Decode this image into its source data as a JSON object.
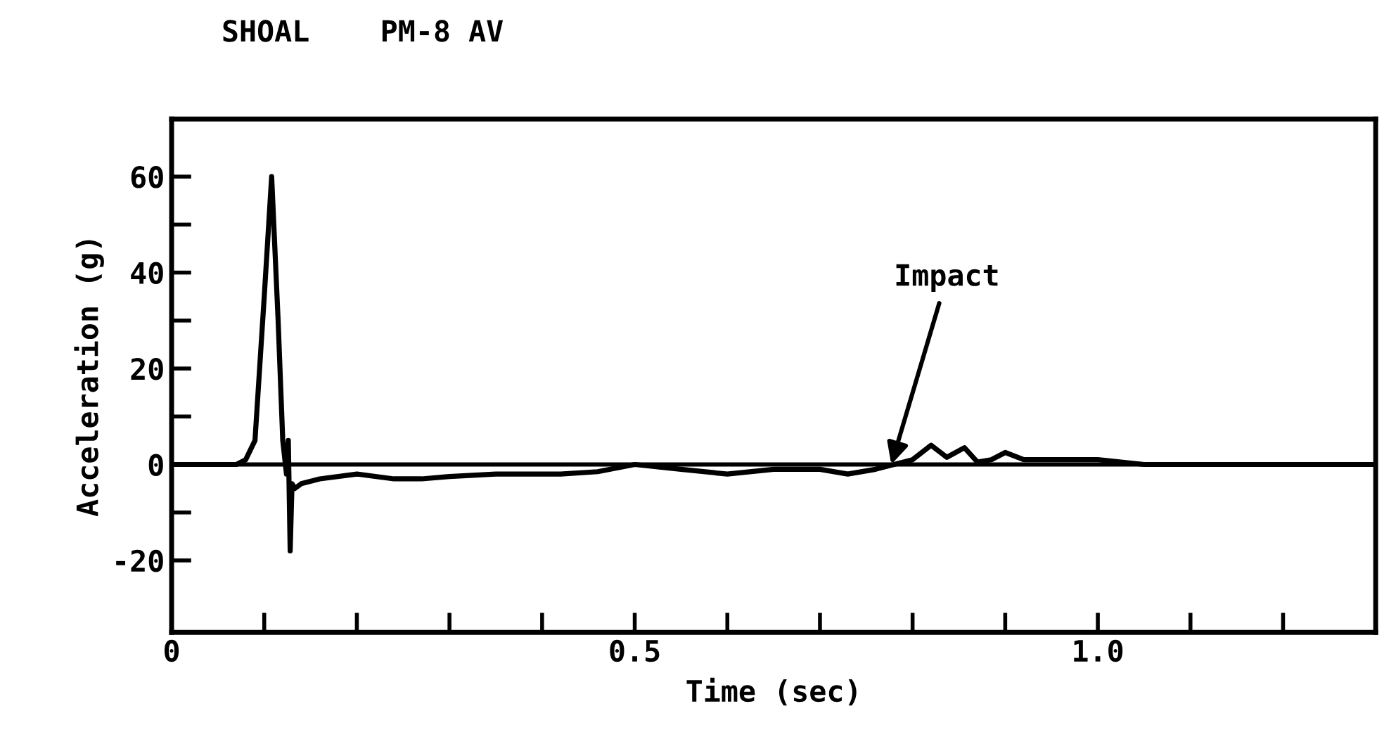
{
  "chart_data": {
    "type": "line",
    "title": "SHOAL    PM-8 AV",
    "xlabel": "Time (sec)",
    "ylabel": "Acceleration (g)",
    "x": [
      0,
      0.07,
      0.08,
      0.09,
      0.1,
      0.108,
      0.115,
      0.12,
      0.124,
      0.126,
      0.128,
      0.13,
      0.133,
      0.14,
      0.16,
      0.2,
      0.24,
      0.27,
      0.3,
      0.35,
      0.42,
      0.46,
      0.5,
      0.55,
      0.6,
      0.65,
      0.7,
      0.73,
      0.76,
      0.78,
      0.8,
      0.82,
      0.837,
      0.856,
      0.87,
      0.885,
      0.9,
      0.92,
      0.95,
      1.0,
      1.05,
      1.1,
      1.2,
      1.3
    ],
    "series": [
      {
        "color": "#000000",
        "values": [
          0,
          0,
          1,
          5,
          35,
          60,
          30,
          5,
          -2,
          5,
          -18,
          -4,
          -5,
          -4,
          -3,
          -2,
          -3,
          -3,
          -2.5,
          -2,
          -2,
          -1.5,
          0,
          -1,
          -2,
          -1,
          -1,
          -2,
          -1,
          0,
          1,
          4,
          1.5,
          3.5,
          0.5,
          1,
          2.5,
          1,
          1,
          1,
          0,
          0,
          0,
          0
        ]
      }
    ],
    "xlim": [
      0,
      1.3
    ],
    "xticks": [
      0,
      {
        "value": 0.1,
        "label": null
      },
      {
        "value": 0.2,
        "label": null
      },
      {
        "value": 0.3,
        "label": null
      },
      {
        "value": 0.4,
        "label": null
      },
      0.5,
      {
        "value": 0.6,
        "label": null
      },
      {
        "value": 0.7,
        "label": null
      },
      {
        "value": 0.8,
        "label": null
      },
      {
        "value": 0.9,
        "label": null
      },
      {
        "value": 1.0,
        "label": "1.0"
      },
      {
        "value": 1.1,
        "label": null
      },
      {
        "value": 1.2,
        "label": null
      }
    ],
    "ylim": [
      -35,
      72
    ],
    "yticks": [
      -20,
      {
        "value": -10,
        "label": null
      },
      0,
      {
        "value": 10,
        "label": null
      },
      20,
      {
        "value": 30,
        "label": null
      },
      40,
      {
        "value": 50,
        "label": null
      },
      60
    ],
    "ref_lines": [
      {
        "axis": "y",
        "value": 0,
        "color": "#000000"
      }
    ],
    "annotations": [
      {
        "text": "Impact",
        "x": 0.777,
        "y": 0
      }
    ],
    "grid": false,
    "legend": false,
    "marker": "none",
    "line_style": "solid"
  }
}
